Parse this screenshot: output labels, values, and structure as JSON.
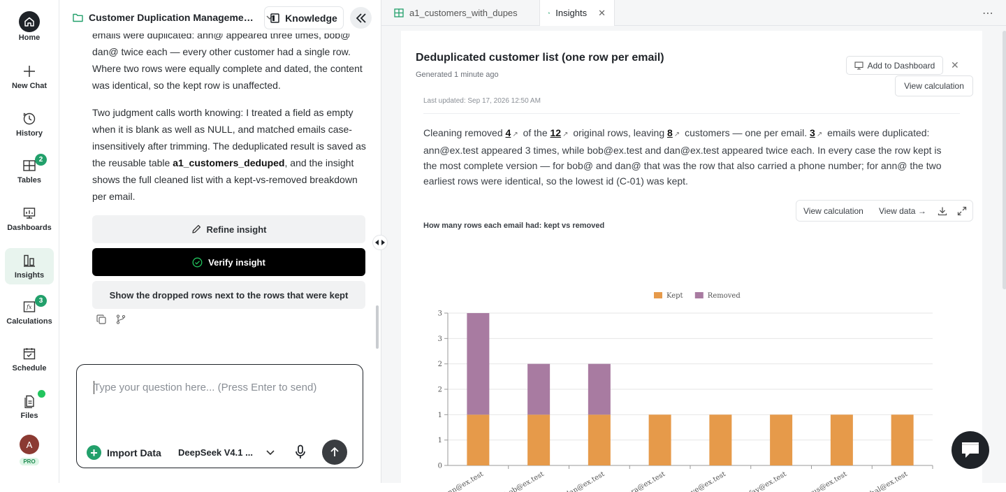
{
  "nav": {
    "home": "Home",
    "new_chat": "New Chat",
    "history": "History",
    "tables": "Tables",
    "tables_badge": "2",
    "dashboards": "Dashboards",
    "insights": "Insights",
    "calculations": "Calculations",
    "calculations_badge": "3",
    "schedule": "Schedule",
    "files": "Files",
    "avatar_initial": "A",
    "plan": "PRO"
  },
  "chat": {
    "project_name": "Customer Duplication Manageme…",
    "knowledge_label": "Knowledge",
    "para1_cut": "emails were duplicated: ann@ appeared three times, bob@ and",
    "para1_rest": "dan@ twice each — every other customer had a single row. Where two rows were equally complete and dated, the content was identical, so the kept row is unaffected.",
    "para2_a": "Two judgment calls worth knowing: I treated a field as empty when it is blank as well as NULL, and matched emails case-insensitively after trimming. The deduplicated result is saved as the reusable table ",
    "para2_table": "a1_customers_deduped",
    "para2_b": ", and the insight shows the full cleaned list with a kept-vs-removed breakdown per email.",
    "refine_label": "Refine insight",
    "verify_label": "Verify insight",
    "suggestion": "Show the dropped rows next to the rows that were kept",
    "input_placeholder": "Type your question here... (Press Enter to send)",
    "import_label": "Import Data",
    "model_label": "DeepSeek V4.1 ..."
  },
  "tabs": {
    "tab1": "a1_customers_with_dupes",
    "tab2": "Insights"
  },
  "insight": {
    "title": "Deduplicated customer list (one row per email)",
    "generated": "Generated 1 minute ago",
    "add_dashboard": "Add to Dashboard",
    "view_calc": "View calculation",
    "last_updated": "Last updated: Sep 17, 2026 12:50 AM",
    "s1": "Cleaning removed ",
    "n_removed": "4",
    "s2": " of the ",
    "n_original": "12",
    "s3": " original rows, leaving ",
    "n_left": "8",
    "s4": " customers — one per email. ",
    "n_dup": "3",
    "s5": " emails were duplicated: ann@ex.test appeared 3 times, while bob@ex.test and dan@ex.test appeared twice each. In every case the row kept is the most complete version — for bob@ and dan@ that was the row that also carried a phone number; for ann@ the two earliest rows were identical, so the lowest id (C-01) was kept.",
    "tb_view_calc": "View calculation",
    "tb_view_data": "View data →",
    "chart_title": "How many rows each email had: kept vs removed"
  },
  "chart_data": {
    "type": "bar",
    "stacked": true,
    "title": "How many rows each email had: kept vs removed",
    "categories": [
      "ann@ex.test",
      "bob@ex.test",
      "dan@ex.test",
      "cara@ex.test",
      "eve@ex.test",
      "fay@ex.test",
      "gus@ex.test",
      "hal@ex.test"
    ],
    "series": [
      {
        "name": "Kept",
        "color": "#e69a4a",
        "values": [
          1,
          1,
          1,
          1,
          1,
          1,
          1,
          1
        ]
      },
      {
        "name": "Removed",
        "color": "#a87ba1",
        "values": [
          2,
          1,
          1,
          0,
          0,
          0,
          0,
          0
        ]
      }
    ],
    "ytick_labels": [
      "0",
      "1",
      "1",
      "2",
      "2",
      "3",
      "3"
    ],
    "ylim": [
      0,
      3
    ],
    "legend": "top-center",
    "grid": true
  }
}
